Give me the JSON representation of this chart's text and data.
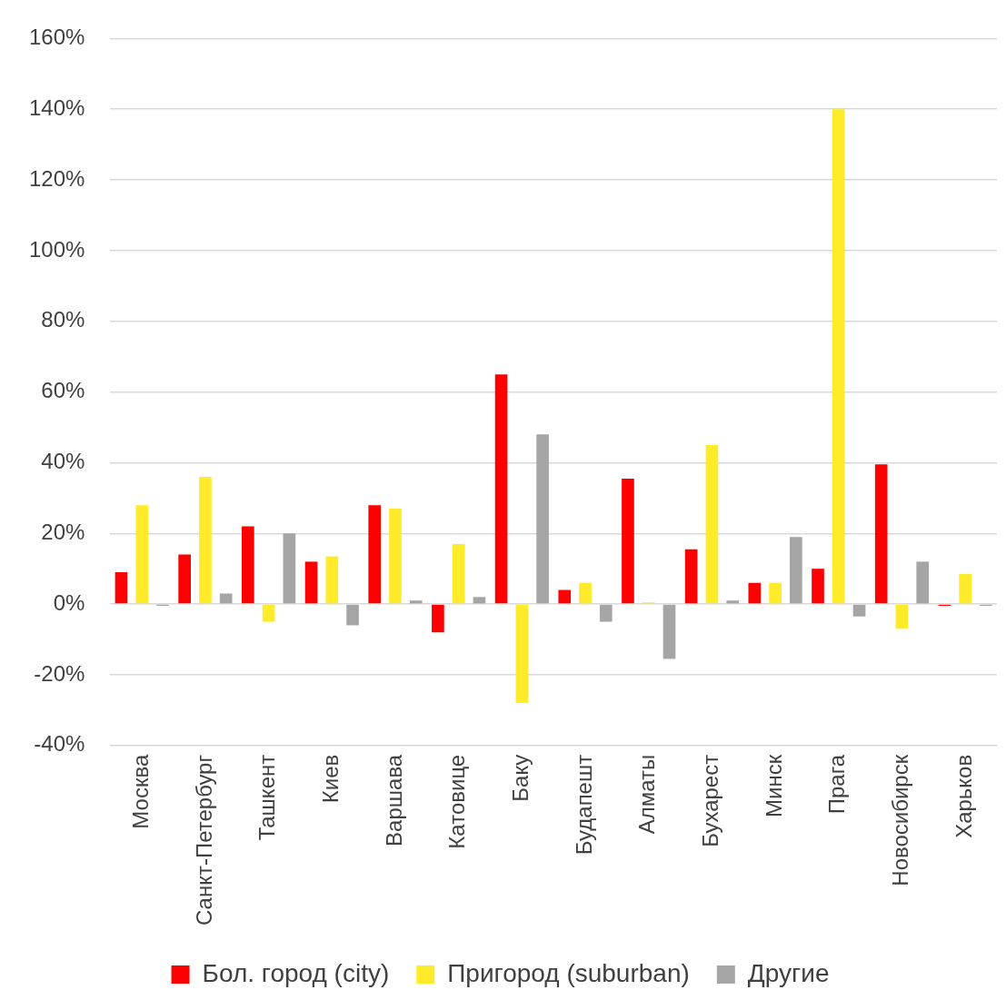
{
  "chart_data": {
    "type": "bar",
    "categories": [
      "Москва",
      "Санкт-Петербург",
      "Ташкент",
      "Киев",
      "Варшава",
      "Катовице",
      "Баку",
      "Будапешт",
      "Алматы",
      "Бухарест",
      "Минск",
      "Прага",
      "Новосибирск",
      "Харьков"
    ],
    "series": [
      {
        "name": "Бол. город (city)",
        "color": "#ff0000",
        "values": [
          9,
          14,
          22,
          12,
          28,
          -8,
          65,
          4,
          35.5,
          15.5,
          6,
          10,
          39.5,
          -0.5
        ]
      },
      {
        "name": "Пригород (suburban)",
        "color": "#ffeb2a",
        "values": [
          28,
          36,
          -5,
          13.5,
          27,
          17,
          -28,
          6,
          0.5,
          45,
          6,
          140,
          -7,
          8.5
        ]
      },
      {
        "name": "Другие",
        "color": "#a5a5a5",
        "values": [
          -0.5,
          3,
          20,
          -6,
          1,
          2,
          48,
          -5,
          -15.5,
          1,
          19,
          -3.5,
          12,
          -0.5
        ]
      }
    ],
    "ylim": [
      -40,
      160
    ],
    "yticks": [
      {
        "value": -40,
        "label": "-40%"
      },
      {
        "value": -20,
        "label": "-20%"
      },
      {
        "value": 0,
        "label": "0%"
      },
      {
        "value": 20,
        "label": "20%"
      },
      {
        "value": 40,
        "label": "40%"
      },
      {
        "value": 60,
        "label": "60%"
      },
      {
        "value": 80,
        "label": "80%"
      },
      {
        "value": 100,
        "label": "100%"
      },
      {
        "value": 120,
        "label": "120%"
      },
      {
        "value": 140,
        "label": "140%"
      },
      {
        "value": 160,
        "label": "160%"
      }
    ],
    "grid": "y",
    "legend": "bottom"
  }
}
